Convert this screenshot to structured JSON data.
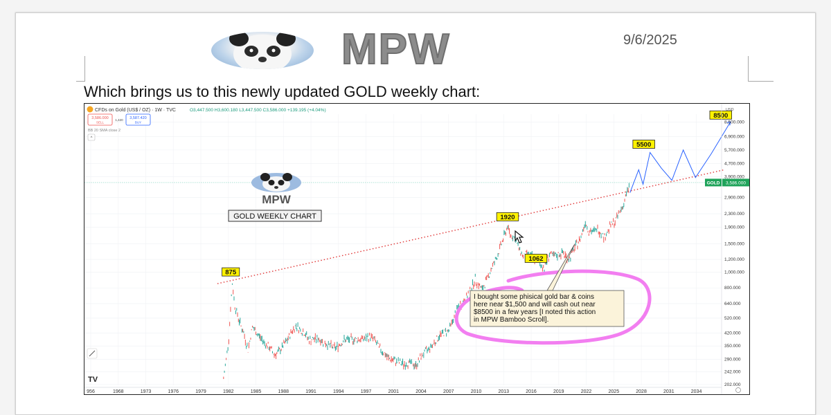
{
  "page": {
    "brand": "MPW",
    "date": "9/6/2025",
    "intro_text": "Which brings us to this newly updated GOLD weekly chart:"
  },
  "chart_header": {
    "symbol_line": "CFDs on Gold (US$ / OZ) · 1W · TVC",
    "ohlc": {
      "open": "O3,447.500",
      "high": "H3,600.180",
      "low": "L3,447.500",
      "close": "C3,586.000",
      "change": "+139.195 (+4.04%)"
    },
    "sell_price": "3,586.000",
    "sell_label": "SELL",
    "spread": "1,420",
    "buy_price": "3,587.420",
    "buy_label": "BUY",
    "indicator": "BB 20 SMA close 2",
    "currency": "USD"
  },
  "chart_overlay": {
    "brand": "MPW",
    "title_box": "GOLD WEEKLY CHART"
  },
  "chart_data": {
    "type": "line",
    "title": "CFDs on Gold (US$ / OZ) · 1W · TVC",
    "xlabel": "",
    "ylabel": "USD",
    "y_scale": "log",
    "ylim": [
      200,
      9500
    ],
    "xlim": [
      1956,
      2037
    ],
    "grid": true,
    "x_ticks": [
      "956",
      "1968",
      "1973",
      "1976",
      "1979",
      "1982",
      "1985",
      "1988",
      "1991",
      "1994",
      "1997",
      "2001",
      "2004",
      "2007",
      "2010",
      "2013",
      "2016",
      "2019",
      "2022",
      "2025",
      "2028",
      "2031",
      "2034"
    ],
    "y_ticks": [
      {
        "label": "8,500.000",
        "value": 8500
      },
      {
        "label": "6,900.000",
        "value": 6900
      },
      {
        "label": "5,700.000",
        "value": 5700
      },
      {
        "label": "4,700.000",
        "value": 4700
      },
      {
        "label": "3,900.000",
        "value": 3900
      },
      {
        "label": "2,900.000",
        "value": 2900
      },
      {
        "label": "2,300.000",
        "value": 2300
      },
      {
        "label": "1,900.000",
        "value": 1900
      },
      {
        "label": "1,500.000",
        "value": 1500
      },
      {
        "label": "1,200.000",
        "value": 1200
      },
      {
        "label": "1,000.000",
        "value": 1000
      },
      {
        "label": "800.000",
        "value": 800
      },
      {
        "label": "640.000",
        "value": 640
      },
      {
        "label": "520.000",
        "value": 520
      },
      {
        "label": "420.000",
        "value": 420
      },
      {
        "label": "350.000",
        "value": 350
      },
      {
        "label": "290.000",
        "value": 290
      },
      {
        "label": "242.000",
        "value": 242
      },
      {
        "label": "202.000",
        "value": 202
      }
    ],
    "price_series": {
      "name": "Gold weekly",
      "x": [
        1979.2,
        1979.5,
        1979.8,
        1980.0,
        1980.2,
        1980.5,
        1981.0,
        1981.5,
        1982.0,
        1982.5,
        1983.0,
        1983.5,
        1984.0,
        1984.5,
        1985.0,
        1985.5,
        1986.0,
        1986.5,
        1987.0,
        1987.5,
        1988.0,
        1988.5,
        1989.0,
        1990.0,
        1991.0,
        1992.0,
        1993.0,
        1994.0,
        1995.0,
        1996.0,
        1996.5,
        1997.0,
        1997.5,
        1998.0,
        1999.0,
        1999.8,
        2000.5,
        2001.2,
        2002.0,
        2003.0,
        2004.0,
        2005.0,
        2006.0,
        2007.0,
        2008.0,
        2008.8,
        2009.5,
        2010.0,
        2010.5,
        2011.0,
        2011.7,
        2012.0,
        2012.5,
        2013.0,
        2013.5,
        2014.0,
        2014.5,
        2015.0,
        2015.9,
        2016.5,
        2017.0,
        2018.0,
        2018.7,
        2019.5,
        2020.0,
        2020.6,
        2021.0,
        2021.5,
        2022.0,
        2022.8,
        2023.5,
        2024.0,
        2024.5,
        2025.0,
        2025.7
      ],
      "y": [
        220,
        290,
        390,
        600,
        850,
        620,
        500,
        420,
        330,
        460,
        420,
        390,
        360,
        340,
        310,
        320,
        350,
        380,
        430,
        470,
        440,
        420,
        380,
        390,
        360,
        340,
        380,
        385,
        385,
        400,
        380,
        340,
        320,
        295,
        280,
        270,
        275,
        265,
        310,
        350,
        410,
        440,
        600,
        700,
        900,
        780,
        950,
        1100,
        1250,
        1500,
        1920,
        1700,
        1650,
        1400,
        1250,
        1300,
        1250,
        1180,
        1062,
        1300,
        1250,
        1320,
        1200,
        1450,
        1600,
        2050,
        1800,
        1780,
        1850,
        1650,
        1950,
        2050,
        2350,
        2650,
        3586
      ]
    },
    "projection": {
      "name": "Projected path",
      "x": [
        2025.7,
        2026.7,
        2027.2,
        2028.0,
        2029.3,
        2030.5,
        2031.8,
        2033.2,
        2035.0,
        2037.2
      ],
      "y": [
        3100,
        4300,
        3500,
        5500,
        4400,
        3700,
        5700,
        3850,
        5400,
        8500
      ]
    },
    "trendline": {
      "name": "Resistance trendline",
      "style": "dotted",
      "color": "#e03434",
      "x": [
        1978.5,
        2036.5
      ],
      "y": [
        850,
        4300
      ]
    },
    "annotations": [
      {
        "text": "875",
        "x": 1980.1,
        "y": 875
      },
      {
        "text": "1920",
        "x": 2011.7,
        "y": 1920
      },
      {
        "text": "1062",
        "x": 2015.9,
        "y": 1062
      },
      {
        "text": "5500",
        "x": 2028.0,
        "y": 5500
      },
      {
        "text": "8500",
        "x": 2037.2,
        "y": 8500
      }
    ],
    "note": {
      "lines": [
        "I bought some phisical gold bar & coins",
        "here near $1,500 and will cash out near",
        "$8500 in a few years [I noted this action",
        "in MPW Bamboo Scroll]."
      ],
      "points_to": {
        "x": 2019.4,
        "y": 1500
      }
    },
    "current_price": {
      "label": "GOLD",
      "value": 3586,
      "text": "3,586.000"
    }
  },
  "colors": {
    "up": "#26a69a",
    "down": "#ef5350",
    "projection": "#2962ff",
    "trendline": "#e03434",
    "callout": "#fff200",
    "highlight": "#f27ef0",
    "price_tag": "#1fa35a"
  }
}
